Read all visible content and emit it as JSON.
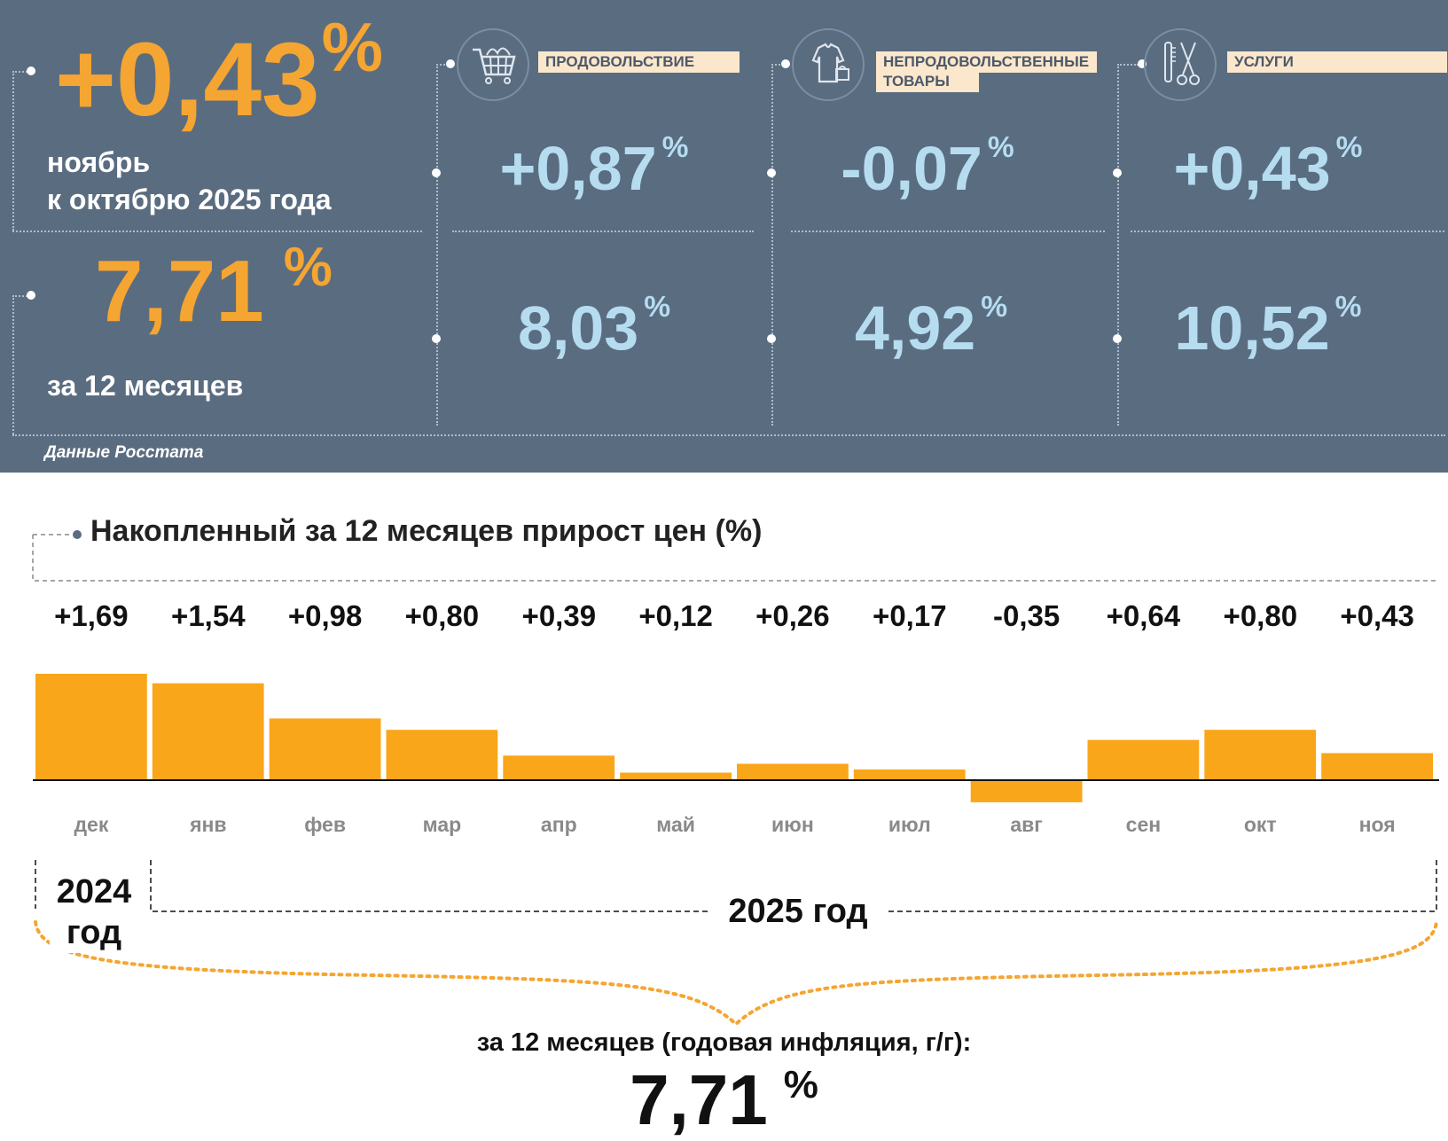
{
  "header": {
    "monthly_value": "+0,43",
    "monthly_unit": "%",
    "monthly_label_line1": "ноябрь",
    "monthly_label_line2": "к октябрю 2025 года",
    "annual_value": "7,71",
    "annual_unit": "%",
    "annual_label": "за 12 месяцев",
    "source": "Данные Росстата"
  },
  "categories": [
    {
      "name": "ПРОДОВОЛЬСТВИЕ",
      "icon": "shopping-cart-icon",
      "monthly": "+0,87",
      "annual": "8,03",
      "unit": "%"
    },
    {
      "name_line1": "НЕПРОДОВОЛЬСТВЕННЫЕ",
      "name_line2": "ТОВАРЫ",
      "icon": "clothing-icon",
      "monthly": "-0,07",
      "annual": "4,92",
      "unit": "%"
    },
    {
      "name": "УСЛУГИ",
      "icon": "barber-tools-icon",
      "monthly": "+0,43",
      "annual": "10,52",
      "unit": "%"
    }
  ],
  "chart_data": {
    "type": "bar",
    "title": "Накопленный за 12 месяцев прирост цен (%)",
    "categories": [
      "дек",
      "янв",
      "фев",
      "мар",
      "апр",
      "май",
      "июн",
      "июл",
      "авг",
      "сен",
      "окт",
      "ноя"
    ],
    "values": [
      1.69,
      1.54,
      0.98,
      0.8,
      0.39,
      0.12,
      0.26,
      0.17,
      -0.35,
      0.64,
      0.8,
      0.43
    ],
    "value_labels": [
      "+1,69",
      "+1,54",
      "+0,98",
      "+0,80",
      "+0,39",
      "+0,12",
      "+0,26",
      "+0,17",
      "-0,35",
      "+0,64",
      "+0,80",
      "+0,43"
    ],
    "ylim": [
      -0.35,
      1.69
    ],
    "bar_color": "#faa61a",
    "year_groups": [
      {
        "label_line1": "2024",
        "label_line2": "год"
      },
      {
        "label": "2025 год"
      }
    ]
  },
  "footer": {
    "annual_text": "за 12 месяцев (годовая инфляция, г/г):",
    "annual_value": "7,71",
    "annual_unit": "%"
  },
  "colors": {
    "panel_bg": "#5a6c80",
    "orange": "#f5a531",
    "light_blue": "#b6dcf0",
    "label_bg": "#fbe7cc"
  }
}
